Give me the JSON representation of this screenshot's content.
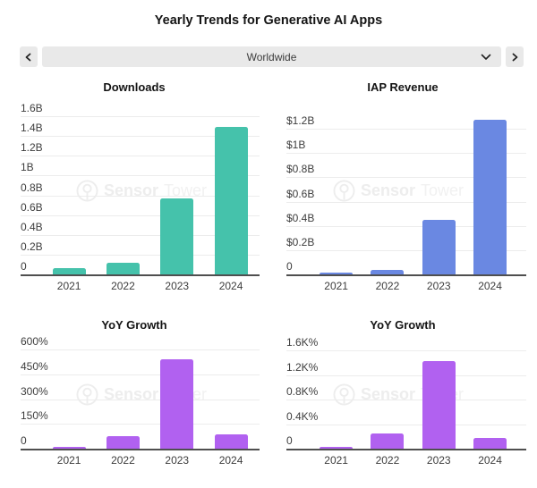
{
  "page": {
    "title": "Yearly Trends for Generative AI Apps"
  },
  "nav": {
    "prev_button": "chevron-left",
    "next_button": "chevron-right",
    "region_selector": {
      "value": "Worldwide"
    }
  },
  "watermark": {
    "brand_bold": "Sensor",
    "brand_light": "Tower",
    "logo": "sensortower-circle-logo"
  },
  "colors": {
    "downloads_bar": "#45c2ab",
    "revenue_bar": "#6a88e2",
    "growth_bar": "#b161f0",
    "gridline": "#ececec",
    "axis": "#4f4f4f",
    "control_background": "#e9e9e9"
  },
  "chart_data": [
    {
      "id": "downloads",
      "type": "bar",
      "title": "Downloads",
      "categories": [
        "2021",
        "2022",
        "2023",
        "2024"
      ],
      "values": [
        0.06,
        0.12,
        0.77,
        1.49
      ],
      "unit": "billions of downloads",
      "ylim": [
        0,
        1.6
      ],
      "ytick_values": [
        0,
        0.2,
        0.4,
        0.6,
        0.8,
        1.0,
        1.2,
        1.4,
        1.6
      ],
      "ytick_labels": [
        "0",
        "0.2B",
        "0.4B",
        "0.6B",
        "0.8B",
        "1B",
        "1.2B",
        "1.4B",
        "1.6B"
      ],
      "bar_color": "#45c2ab",
      "grid": true,
      "legend": "none"
    },
    {
      "id": "iap-revenue",
      "type": "bar",
      "title": "IAP Revenue",
      "categories": [
        "2021",
        "2022",
        "2023",
        "2024"
      ],
      "values": [
        0.01,
        0.04,
        0.45,
        1.27
      ],
      "unit": "billions USD",
      "ylim": [
        0,
        1.2
      ],
      "ytick_values": [
        0,
        0.2,
        0.4,
        0.6,
        0.8,
        1.0,
        1.2
      ],
      "ytick_labels": [
        "0",
        "$0.2B",
        "$0.4B",
        "$0.6B",
        "$0.8B",
        "$1B",
        "$1.2B"
      ],
      "bar_color": "#6a88e2",
      "grid": true,
      "legend": "none"
    },
    {
      "id": "yoy-growth-downloads",
      "type": "bar",
      "title": "YoY Growth",
      "categories": [
        "2021",
        "2022",
        "2023",
        "2024"
      ],
      "values": [
        8,
        75,
        540,
        88
      ],
      "unit": "percent",
      "ylim": [
        0,
        600
      ],
      "ytick_values": [
        0,
        150,
        300,
        450,
        600
      ],
      "ytick_labels": [
        "0",
        "150%",
        "300%",
        "450%",
        "600%"
      ],
      "bar_color": "#b161f0",
      "grid": true,
      "legend": "none"
    },
    {
      "id": "yoy-growth-revenue",
      "type": "bar",
      "title": "YoY Growth",
      "categories": [
        "2021",
        "2022",
        "2023",
        "2024"
      ],
      "values": [
        15,
        250,
        1420,
        180
      ],
      "unit": "percent",
      "ylim": [
        0,
        1600
      ],
      "ytick_values": [
        0,
        400,
        800,
        1200,
        1600
      ],
      "ytick_labels": [
        "0",
        "0.4K%",
        "0.8K%",
        "1.2K%",
        "1.6K%"
      ],
      "bar_color": "#b161f0",
      "grid": true,
      "legend": "none"
    }
  ]
}
